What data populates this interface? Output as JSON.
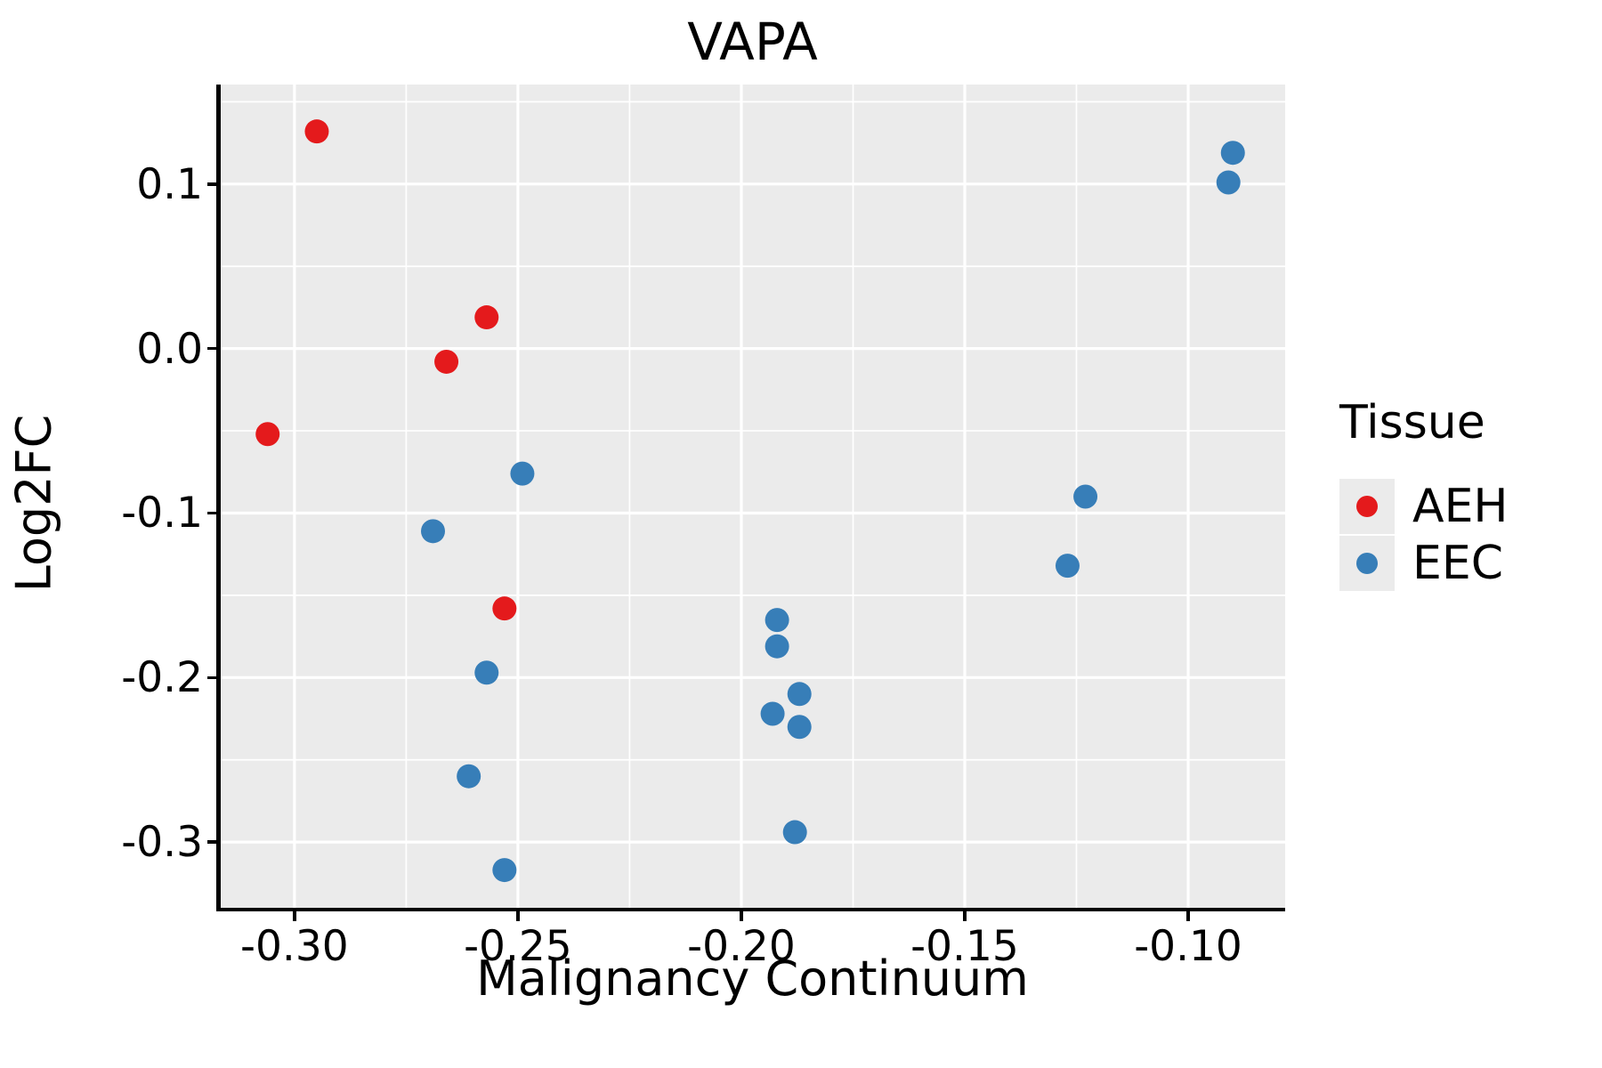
{
  "page": {
    "background": "#ffffff"
  },
  "chart_data": {
    "type": "scatter",
    "title": "VAPA",
    "xlabel": "Malignancy Continuum",
    "ylabel": "Log2FC",
    "xlim": [
      -0.3167,
      -0.0783
    ],
    "ylim": [
      -0.3405,
      0.1605
    ],
    "x_ticks": {
      "values": [
        -0.3,
        -0.25,
        -0.2,
        -0.15,
        -0.1
      ],
      "labels": [
        "-0.30",
        "-0.25",
        "-0.20",
        "-0.15",
        "-0.10"
      ]
    },
    "y_ticks": {
      "values": [
        0.1,
        0.0,
        -0.1,
        -0.2,
        -0.3
      ],
      "labels": [
        "0.1",
        "0.0",
        "-0.1",
        "-0.2",
        "-0.3"
      ]
    },
    "x_minor_ticks": [
      -0.275,
      -0.225,
      -0.175,
      -0.125
    ],
    "y_minor_ticks": [
      0.15,
      0.05,
      -0.05,
      -0.15,
      -0.25
    ],
    "grid": {
      "major": true,
      "minor": true
    },
    "panel_bg": "#ebebeb",
    "grid_color": "#ffffff",
    "axis_color": "#000000",
    "point_radius": 13.5,
    "legend": {
      "title": "Tissue",
      "position": "right"
    },
    "series": [
      {
        "name": "AEH",
        "color": "#e41a1c",
        "points": [
          [
            -0.295,
            0.132
          ],
          [
            -0.257,
            0.019
          ],
          [
            -0.266,
            -0.008
          ],
          [
            -0.306,
            -0.052
          ],
          [
            -0.253,
            -0.158
          ]
        ]
      },
      {
        "name": "EEC",
        "color": "#377eb8",
        "points": [
          [
            -0.249,
            -0.076
          ],
          [
            -0.269,
            -0.111
          ],
          [
            -0.257,
            -0.197
          ],
          [
            -0.261,
            -0.26
          ],
          [
            -0.253,
            -0.317
          ],
          [
            -0.192,
            -0.165
          ],
          [
            -0.192,
            -0.181
          ],
          [
            -0.193,
            -0.222
          ],
          [
            -0.187,
            -0.21
          ],
          [
            -0.187,
            -0.23
          ],
          [
            -0.188,
            -0.294
          ],
          [
            -0.123,
            -0.09
          ],
          [
            -0.127,
            -0.132
          ],
          [
            -0.09,
            0.119
          ],
          [
            -0.091,
            0.101
          ]
        ]
      }
    ]
  }
}
